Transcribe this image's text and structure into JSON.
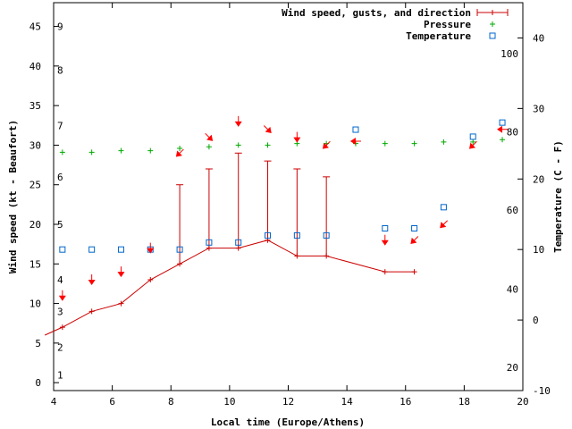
{
  "chart_data": {
    "type": "line",
    "xlabel": "Local time (Europe/Athens)",
    "ylabel": "Wind speed (kt - Beaufort)",
    "y2label": "Temperature (C - F)",
    "xlim": [
      4,
      20
    ],
    "ylim": [
      -1,
      48
    ],
    "y2lim": [
      -10,
      45
    ],
    "x_ticks": [
      4,
      6,
      8,
      10,
      12,
      14,
      16,
      18,
      20
    ],
    "y_ticks": [
      0,
      5,
      10,
      15,
      20,
      25,
      30,
      35,
      40,
      45
    ],
    "y2_ticks": [
      -10,
      0,
      10,
      20,
      30,
      40
    ],
    "beaufort_labels": [
      {
        "label": "1",
        "y": 1
      },
      {
        "label": "2",
        "y": 4.5
      },
      {
        "label": "3",
        "y": 9
      },
      {
        "label": "4",
        "y": 13
      },
      {
        "label": "5",
        "y": 20
      },
      {
        "label": "6",
        "y": 26
      },
      {
        "label": "7",
        "y": 32.5
      },
      {
        "label": "8",
        "y": 39.5
      },
      {
        "label": "9",
        "y": 45
      }
    ],
    "fahrenheit_labels": [
      {
        "label": "20",
        "c": -6.7
      },
      {
        "label": "40",
        "c": 4.4
      },
      {
        "label": "60",
        "c": 15.6
      },
      {
        "label": "80",
        "c": 26.7
      },
      {
        "label": "100",
        "c": 37.8
      }
    ],
    "grid": false,
    "legend_position": "top-right",
    "legend": [
      "Wind speed, gusts, and direction",
      "Pressure",
      "Temperature"
    ],
    "colors": {
      "wind": "#cc0000",
      "pressure": "#00aa00",
      "temperature": "#0066cc",
      "arrow": "#ff0000"
    },
    "series": [
      {
        "name": "Wind speed, gusts, and direction",
        "x": [
          3.7,
          4.3,
          5.3,
          6.3,
          7.3,
          8.3,
          9.3,
          10.3,
          11.3,
          12.3,
          13.3,
          15.3,
          16.3
        ],
        "values": [
          6,
          7,
          9,
          10,
          13,
          15,
          17,
          17,
          18,
          16,
          16,
          14,
          14
        ],
        "gusts": [
          null,
          null,
          null,
          null,
          null,
          25,
          27,
          29,
          28,
          27,
          26,
          null,
          null
        ]
      },
      {
        "name": "Pressure",
        "x": [
          4.3,
          5.3,
          6.3,
          7.3,
          8.3,
          9.3,
          10.3,
          11.3,
          12.3,
          13.3,
          14.3,
          15.3,
          16.3,
          17.3,
          18.3,
          19.3
        ],
        "values": [
          29.1,
          29.1,
          29.3,
          29.3,
          29.6,
          29.8,
          30.0,
          30.0,
          30.2,
          30.2,
          30.2,
          30.2,
          30.2,
          30.4,
          30.4,
          30.7
        ]
      },
      {
        "name": "Temperature",
        "x": [
          4.3,
          5.3,
          6.3,
          7.3,
          8.3,
          9.3,
          10.3,
          11.3,
          12.3,
          13.3,
          14.3,
          15.3,
          16.3,
          17.3,
          18.3,
          19.3
        ],
        "values": [
          10,
          10,
          10,
          10,
          10,
          11,
          11,
          12,
          12,
          12,
          27,
          13,
          13,
          16,
          26,
          28
        ]
      }
    ],
    "direction_arrows": [
      {
        "x": 4.3,
        "y": 11,
        "dir": "down"
      },
      {
        "x": 5.3,
        "y": 13,
        "dir": "down"
      },
      {
        "x": 6.3,
        "y": 14,
        "dir": "down"
      },
      {
        "x": 7.3,
        "y": 17,
        "dir": "down"
      },
      {
        "x": 8.3,
        "y": 29,
        "dir": "down-left"
      },
      {
        "x": 9.3,
        "y": 31,
        "dir": "down-right"
      },
      {
        "x": 10.3,
        "y": 33,
        "dir": "down"
      },
      {
        "x": 11.3,
        "y": 32,
        "dir": "down-right"
      },
      {
        "x": 12.3,
        "y": 31,
        "dir": "down"
      },
      {
        "x": 13.3,
        "y": 30,
        "dir": "down-left"
      },
      {
        "x": 14.3,
        "y": 30.5,
        "dir": "left"
      },
      {
        "x": 15.3,
        "y": 18,
        "dir": "down"
      },
      {
        "x": 16.3,
        "y": 18,
        "dir": "down-left"
      },
      {
        "x": 17.3,
        "y": 20,
        "dir": "down-left"
      },
      {
        "x": 18.3,
        "y": 30,
        "dir": "down-left"
      },
      {
        "x": 19.3,
        "y": 32,
        "dir": "left"
      }
    ]
  }
}
